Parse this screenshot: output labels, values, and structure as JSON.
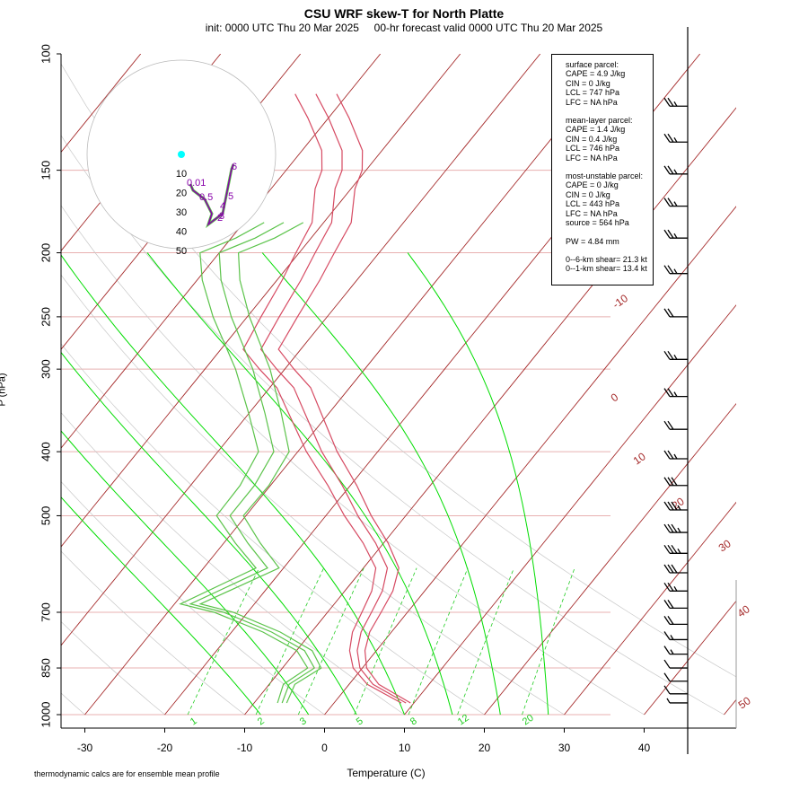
{
  "header": {
    "title": "CSU WRF skew-T for North Platte",
    "subtitle": "init: 0000 UTC Thu 20 Mar 2025     00-hr forecast valid 0000 UTC Thu 20 Mar 2025"
  },
  "footnote": "thermodynamic calcs are for ensemble mean profile",
  "info_box": {
    "surface": [
      "surface parcel:",
      "CAPE = 4.9 J/kg",
      "CIN = 0 J/kg",
      "LCL = 747 hPa",
      "LFC = NA hPa"
    ],
    "mean_layer": [
      "mean-layer parcel:",
      "CAPE = 1.4 J/kg",
      "CIN = 0.4 J/kg",
      "LCL = 746 hPa",
      "LFC = NA hPa"
    ],
    "most_unstable": [
      "most-unstable parcel:",
      "CAPE = 0 J/kg",
      "CIN = 0 J/kg",
      "LCL = 443 hPa",
      "LFC = NA hPa",
      "source = 564 hPa"
    ],
    "pw": [
      "PW =  4.84 mm"
    ],
    "shear": [
      "0--6-km shear= 21.3 kt",
      "0--1-km shear= 13.4 kt"
    ]
  },
  "colors": {
    "temperature": "#d64a62",
    "dewpoint": "#5bc34a",
    "isotherm": "#a52a2a",
    "dry_adiabat_bg": "#c8c8c8",
    "moist_adiabat": "#00dd00",
    "mixing_ratio": "#22cc22",
    "hodo_line": "#8800aa",
    "hodo_marker": "#00ffff",
    "isobar": "#e8b0b0"
  },
  "chart_data": {
    "type": "skew-T log-P",
    "xlabel": "Temperature (C)",
    "ylabel": "P (hPa)",
    "xlim": [
      -33,
      52
    ],
    "ylim": [
      1000,
      100
    ],
    "x_ticks": [
      -30,
      -20,
      -10,
      0,
      10,
      20,
      30,
      40
    ],
    "y_ticks": [
      100,
      150,
      200,
      250,
      300,
      400,
      500,
      700,
      850,
      1000
    ],
    "isotherm_labels": [
      "-10",
      "0",
      "10",
      "20",
      "30",
      "40",
      "50"
    ],
    "mixing_ratio_labels": [
      "1",
      "2",
      "3",
      "5",
      "8",
      "12",
      "20"
    ],
    "hodograph_ring_labels": [
      "10",
      "20",
      "30",
      "40",
      "50"
    ],
    "hodograph_height_labels": [
      "0.01",
      "0.5",
      "6",
      "5",
      "4",
      "3",
      "2"
    ],
    "series": [
      {
        "name": "temperature",
        "points": [
          [
            960,
            9
          ],
          [
            900,
            3
          ],
          [
            850,
            -0.3
          ],
          [
            800,
            -2.4
          ],
          [
            750,
            -3.8
          ],
          [
            700,
            -4.5
          ],
          [
            650,
            -5.3
          ],
          [
            600,
            -7
          ],
          [
            550,
            -11
          ],
          [
            500,
            -16
          ],
          [
            450,
            -21
          ],
          [
            400,
            -27
          ],
          [
            350,
            -33
          ],
          [
            320,
            -37
          ],
          [
            300,
            -41
          ],
          [
            280,
            -45
          ],
          [
            250,
            -46
          ],
          [
            220,
            -47
          ],
          [
            200,
            -48
          ],
          [
            180,
            -49
          ],
          [
            160,
            -52
          ],
          [
            150,
            -53
          ],
          [
            140,
            -55
          ],
          [
            125,
            -60
          ],
          [
            115,
            -64
          ]
        ]
      },
      {
        "name": "dewpoint",
        "points": [
          [
            960,
            -6.5
          ],
          [
            900,
            -7.5
          ],
          [
            850,
            -6
          ],
          [
            800,
            -9
          ],
          [
            750,
            -15
          ],
          [
            700,
            -23
          ],
          [
            680,
            -28
          ],
          [
            600,
            -22
          ],
          [
            550,
            -27
          ],
          [
            500,
            -32
          ],
          [
            450,
            -32
          ],
          [
            400,
            -33
          ],
          [
            350,
            -38
          ],
          [
            300,
            -44
          ],
          [
            250,
            -52
          ],
          [
            220,
            -57
          ],
          [
            200,
            -60
          ],
          [
            190,
            -57
          ],
          [
            180,
            -55
          ]
        ]
      }
    ],
    "wind_barbs": [
      {
        "p": 120,
        "spd": 25
      },
      {
        "p": 136,
        "spd": 25
      },
      {
        "p": 152,
        "spd": 25
      },
      {
        "p": 170,
        "spd": 25
      },
      {
        "p": 190,
        "spd": 25
      },
      {
        "p": 215,
        "spd": 25
      },
      {
        "p": 250,
        "spd": 20
      },
      {
        "p": 290,
        "spd": 25
      },
      {
        "p": 330,
        "spd": 25
      },
      {
        "p": 370,
        "spd": 20
      },
      {
        "p": 410,
        "spd": 25
      },
      {
        "p": 450,
        "spd": 30
      },
      {
        "p": 490,
        "spd": 35
      },
      {
        "p": 530,
        "spd": 35
      },
      {
        "p": 570,
        "spd": 35
      },
      {
        "p": 610,
        "spd": 30
      },
      {
        "p": 650,
        "spd": 25
      },
      {
        "p": 690,
        "spd": 20
      },
      {
        "p": 730,
        "spd": 20
      },
      {
        "p": 770,
        "spd": 15
      },
      {
        "p": 810,
        "spd": 15
      },
      {
        "p": 850,
        "spd": 10
      },
      {
        "p": 890,
        "spd": 10
      },
      {
        "p": 930,
        "spd": 10
      },
      {
        "p": 960,
        "spd": 5
      }
    ]
  }
}
